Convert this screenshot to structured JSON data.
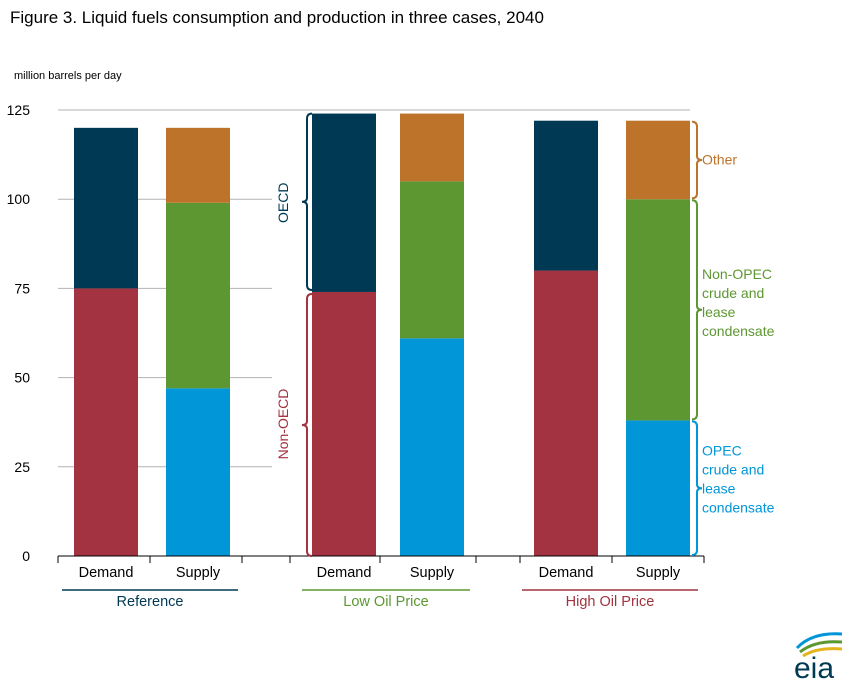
{
  "title": "Figure 3. Liquid fuels consumption and production in three cases, 2040",
  "ylabel": "million barrels per day",
  "colors": {
    "oecd": "#003953",
    "non_oecd": "#a33340",
    "other": "#bd732a",
    "non_opec": "#5d9732",
    "opec": "#0096d7",
    "reference": "#003953",
    "low_oil_price": "#5d9732",
    "high_oil_price": "#a33340"
  },
  "chart_data": {
    "type": "bar",
    "stacked": true,
    "ylim": [
      0,
      125
    ],
    "yticks": [
      0,
      25,
      50,
      75,
      100,
      125
    ],
    "grid": true,
    "categories": [
      "Demand",
      "Supply",
      "Demand",
      "Supply",
      "Demand",
      "Supply"
    ],
    "groups": [
      {
        "name": "Reference",
        "color_key": "reference",
        "bars": [
          0,
          1
        ]
      },
      {
        "name": "Low Oil Price",
        "color_key": "low_oil_price",
        "bars": [
          2,
          3
        ]
      },
      {
        "name": "High Oil Price",
        "color_key": "high_oil_price",
        "bars": [
          4,
          5
        ]
      }
    ],
    "series": [
      {
        "name": "Non-OECD",
        "color_key": "non_oecd",
        "values": [
          75,
          0,
          74,
          0,
          80,
          0
        ]
      },
      {
        "name": "OECD",
        "color_key": "oecd",
        "values": [
          45,
          0,
          50,
          0,
          42,
          0
        ]
      },
      {
        "name": "OPEC crude and lease condensate",
        "color_key": "opec",
        "values": [
          0,
          47,
          0,
          61,
          0,
          38
        ]
      },
      {
        "name": "Non-OPEC crude and lease condensate",
        "color_key": "non_opec",
        "values": [
          0,
          52,
          0,
          44,
          0,
          62
        ]
      },
      {
        "name": "Other",
        "color_key": "other",
        "values": [
          0,
          21,
          0,
          19,
          0,
          22
        ]
      }
    ],
    "side_labels": {
      "left": [
        {
          "text": "OECD",
          "color_key": "oecd"
        },
        {
          "text": "Non-OECD",
          "color_key": "non_oecd"
        }
      ],
      "right": [
        {
          "lines": [
            "Other"
          ],
          "color_key": "other"
        },
        {
          "lines": [
            "Non-OPEC",
            "crude and",
            "lease",
            "condensate"
          ],
          "color_key": "non_opec"
        },
        {
          "lines": [
            "OPEC",
            "crude and",
            "lease",
            "condensate"
          ],
          "color_key": "opec"
        }
      ]
    }
  },
  "logo_text": "eia"
}
